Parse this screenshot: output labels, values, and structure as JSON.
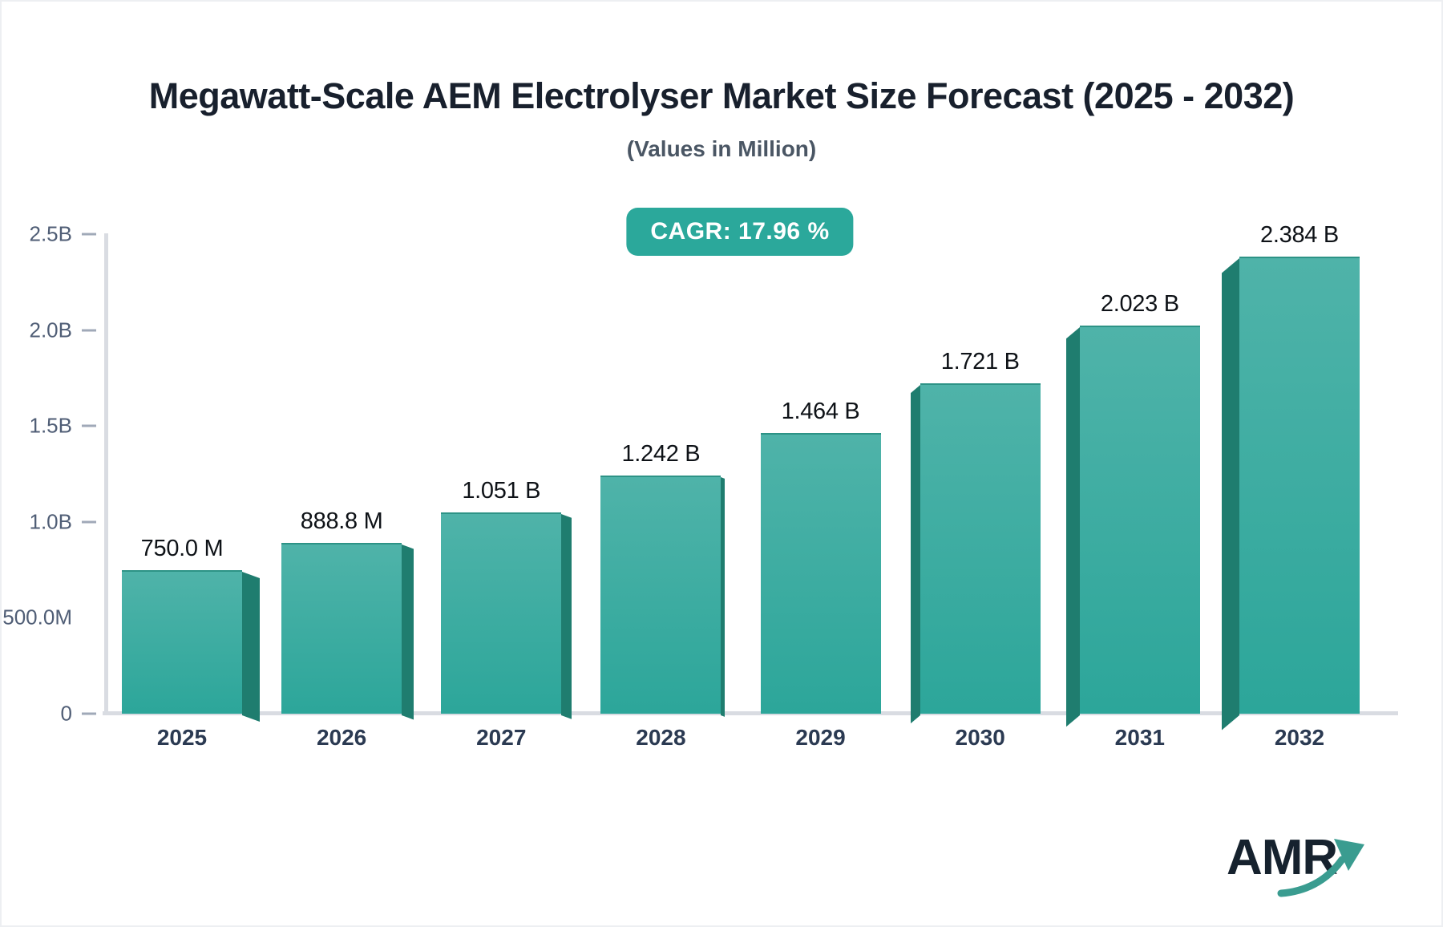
{
  "header": {
    "title": "Megawatt-Scale AEM Electrolyser Market Size Forecast (2025 - 2032)",
    "subtitle": "(Values in Million)"
  },
  "badge": {
    "label": "CAGR: 17.96 %"
  },
  "chart_data": {
    "type": "bar",
    "title": "Megawatt-Scale AEM Electrolyser Market Size Forecast (2025 - 2032)",
    "subtitle": "(Values in Million)",
    "cagr_percent": 17.96,
    "categories": [
      "2025",
      "2026",
      "2027",
      "2028",
      "2029",
      "2030",
      "2031",
      "2032"
    ],
    "values_millions": [
      750.0,
      888.8,
      1051,
      1242,
      1464,
      1721,
      2023,
      2384
    ],
    "bar_labels": [
      "750.0 M",
      "888.8 M",
      "1.051 B",
      "1.242 B",
      "1.464 B",
      "1.721 B",
      "2.023 B",
      "2.384 B"
    ],
    "y_axis": {
      "range_millions": [
        0,
        2500
      ],
      "gridlines": false,
      "ticks": [
        {
          "label": "2.5B",
          "millions": 2500,
          "dash": true
        },
        {
          "label": "2.0B",
          "millions": 2000,
          "dash": true
        },
        {
          "label": "1.5B",
          "millions": 1500,
          "dash": true
        },
        {
          "label": "1.0B",
          "millions": 1000,
          "dash": true
        },
        {
          "label": "500.0M",
          "millions": 500,
          "dash": false
        },
        {
          "label": "0",
          "millions": 0,
          "dash": true
        }
      ]
    },
    "legend": "none",
    "colors": {
      "bar_face_top": "#4fb3a9",
      "bar_face_bottom": "#2ca69a",
      "bar_side_shadow": "#1f7d6f",
      "badge_background": "#2ba89b",
      "badge_text": "#ffffff",
      "axis_line": "#d9dce2",
      "tick_dash": "#a0a9b8",
      "y_label_text": "#505e76",
      "year_label_text": "#2b3a52",
      "value_label_text": "#0e1217",
      "title_text": "#18202d",
      "subtitle_text": "#4a5664"
    }
  },
  "logo": {
    "text": "AMR",
    "icon": "growth-arrow",
    "text_color": "#16222e",
    "arrow_color": "#3a9c90"
  }
}
